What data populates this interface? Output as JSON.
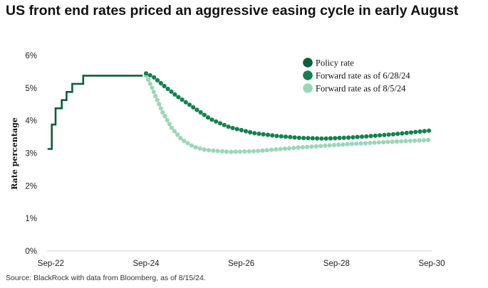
{
  "title": "US front end rates priced an aggressive easing cycle in early August",
  "source": "Source: BlackRock with data from Bloomberg, as of 8/15/24.",
  "chart_data": {
    "type": "line",
    "ylabel": "Rate percentage",
    "xlabel": "",
    "ylim": [
      0,
      6
    ],
    "xlim": [
      2022.67,
      2030.75
    ],
    "yticks": [
      "0%",
      "1%",
      "2%",
      "3%",
      "4%",
      "5%",
      "6%"
    ],
    "xticks": [
      {
        "label": "Sep-22",
        "x": 2022.75
      },
      {
        "label": "Sep-24",
        "x": 2024.75
      },
      {
        "label": "Sep-26",
        "x": 2026.75
      },
      {
        "label": "Sep-28",
        "x": 2028.75
      },
      {
        "label": "Sep-30",
        "x": 2030.75
      }
    ],
    "grid": false,
    "legend_position": "top-right",
    "series": [
      {
        "name": "Policy rate",
        "style": "step",
        "color": "#0b5e3a",
        "points": [
          [
            2022.68,
            3.13
          ],
          [
            2022.77,
            3.13
          ],
          [
            2022.77,
            3.88
          ],
          [
            2022.85,
            3.88
          ],
          [
            2022.85,
            4.38
          ],
          [
            2022.98,
            4.38
          ],
          [
            2022.98,
            4.63
          ],
          [
            2023.08,
            4.63
          ],
          [
            2023.08,
            4.88
          ],
          [
            2023.2,
            4.88
          ],
          [
            2023.2,
            5.13
          ],
          [
            2023.43,
            5.13
          ],
          [
            2023.43,
            5.38
          ],
          [
            2024.68,
            5.38
          ]
        ]
      },
      {
        "name": "Forward rate as of 6/28/24",
        "style": "dotted",
        "color": "#138250",
        "points": [
          [
            2024.75,
            5.45
          ],
          [
            2024.9,
            5.35
          ],
          [
            2025.1,
            5.1
          ],
          [
            2025.4,
            4.75
          ],
          [
            2025.75,
            4.4
          ],
          [
            2026.1,
            4.05
          ],
          [
            2026.5,
            3.8
          ],
          [
            2027.0,
            3.62
          ],
          [
            2027.5,
            3.53
          ],
          [
            2028.0,
            3.47
          ],
          [
            2028.5,
            3.45
          ],
          [
            2029.0,
            3.48
          ],
          [
            2029.5,
            3.53
          ],
          [
            2030.0,
            3.59
          ],
          [
            2030.4,
            3.65
          ],
          [
            2030.75,
            3.7
          ]
        ]
      },
      {
        "name": "Forward rate as of 8/5/24",
        "style": "dotted",
        "color": "#9bd6b9",
        "points": [
          [
            2024.75,
            5.38
          ],
          [
            2024.85,
            5.1
          ],
          [
            2024.95,
            4.75
          ],
          [
            2025.1,
            4.25
          ],
          [
            2025.3,
            3.75
          ],
          [
            2025.5,
            3.42
          ],
          [
            2025.75,
            3.2
          ],
          [
            2026.0,
            3.1
          ],
          [
            2026.5,
            3.04
          ],
          [
            2027.0,
            3.06
          ],
          [
            2027.5,
            3.12
          ],
          [
            2028.0,
            3.18
          ],
          [
            2028.5,
            3.23
          ],
          [
            2029.0,
            3.28
          ],
          [
            2029.5,
            3.32
          ],
          [
            2030.0,
            3.36
          ],
          [
            2030.75,
            3.41
          ]
        ]
      }
    ]
  }
}
